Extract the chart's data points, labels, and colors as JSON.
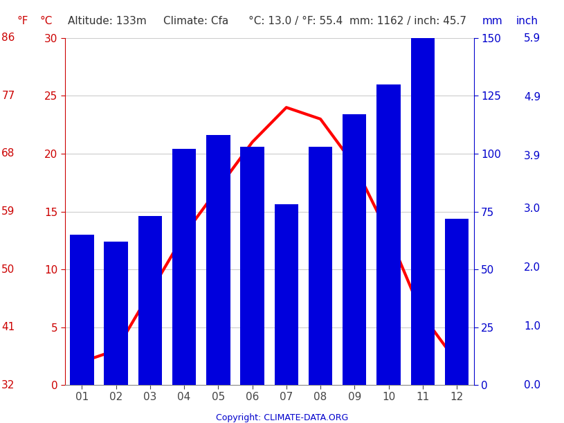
{
  "months": [
    "01",
    "02",
    "03",
    "04",
    "05",
    "06",
    "07",
    "08",
    "09",
    "10",
    "11",
    "12"
  ],
  "precipitation_mm": [
    65,
    62,
    73,
    102,
    108,
    103,
    78,
    103,
    117,
    130,
    150,
    72
  ],
  "temperature_c": [
    2.0,
    3.0,
    8.0,
    13.0,
    17.0,
    21.0,
    24.0,
    23.0,
    19.0,
    13.0,
    6.0,
    2.0
  ],
  "bar_color": "#0000dd",
  "line_color": "#ff0000",
  "bg_color": "#ffffff",
  "copyright": "Copyright: CLIMATE-DATA.ORG",
  "y_left_ticks_c": [
    0,
    5,
    10,
    15,
    20,
    25,
    30
  ],
  "y_left_ticks_f": [
    32,
    41,
    50,
    59,
    68,
    77,
    86
  ],
  "y_right_ticks_mm": [
    0,
    25,
    50,
    75,
    100,
    125,
    150
  ],
  "y_right_ticks_inch": [
    "0.0",
    "1.0",
    "2.0",
    "3.0",
    "3.9",
    "4.9",
    "5.9"
  ],
  "y_right_ticks_inch_vals": [
    0.0,
    25.4,
    50.8,
    76.2,
    99.06,
    124.46,
    149.86
  ],
  "ylim_mm": [
    0,
    150
  ],
  "ylim_c": [
    0,
    30
  ],
  "bar_width": 0.7,
  "line_width": 3.0,
  "grid_color": "#cccccc",
  "red_color": "#cc0000",
  "blue_color": "#0000cc",
  "header_color": "#333333",
  "font_size": 11,
  "header_font_size": 11
}
